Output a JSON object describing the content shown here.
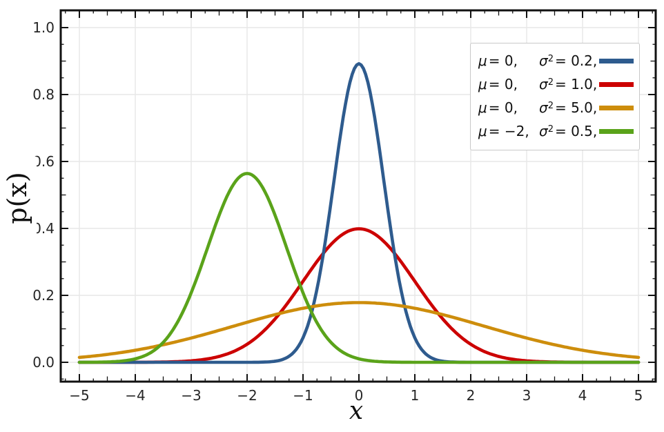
{
  "chart_data": {
    "type": "line",
    "title": "",
    "xlabel": "x",
    "ylabel": "p(x)",
    "xlim": [
      -5.33,
      5.31
    ],
    "ylim": [
      -0.058,
      1.051
    ],
    "x_major_ticks": [
      -5,
      -4,
      -3,
      -2,
      -1,
      0,
      1,
      2,
      3,
      4,
      5
    ],
    "x_tick_labels": [
      "−5",
      "−4",
      "−3",
      "−2",
      "−1",
      "0",
      "1",
      "2",
      "3",
      "4",
      "5"
    ],
    "y_major_ticks": [
      0,
      0.2,
      0.4,
      0.6,
      0.8,
      1.0
    ],
    "y_tick_labels": [
      "0.0",
      "0.2",
      "0.4",
      "0.6",
      "0.8",
      "1.0"
    ],
    "x_minor_step": 0.25,
    "y_minor_step": 0.05,
    "grid": true,
    "legend_position": "upper right",
    "curve_formula": "p(x) = 1/sqrt(2*pi*sigma2) * exp(-(x-mu)^2/(2*sigma2))",
    "x_sample_range": [
      -5,
      5
    ],
    "series": [
      {
        "label": "μ=0, σ²=0.2",
        "mu": 0,
        "sigma2": 0.2,
        "color": "#2e5b8e",
        "z": 2,
        "peak_x": 0,
        "peak_y": 0.892
      },
      {
        "label": "μ=0, σ²=1.0",
        "mu": 0,
        "sigma2": 1.0,
        "color": "#cc0000",
        "z": 1,
        "peak_x": 0,
        "peak_y": 0.399
      },
      {
        "label": "μ=0, σ²=5.0",
        "mu": 0,
        "sigma2": 5.0,
        "color": "#cd8d0c",
        "z": 3,
        "peak_x": 0,
        "peak_y": 0.178
      },
      {
        "label": "μ=−2, σ²=0.5",
        "mu": -2,
        "sigma2": 0.5,
        "color": "#5aa31a",
        "z": 4,
        "peak_x": -2,
        "peak_y": 0.564
      }
    ]
  },
  "legend": {
    "entries": [
      {
        "mu_sym": "μ",
        "mu_val": "= 0,",
        "sig_sym": "σ",
        "sig_exp": "2",
        "sig_val": "= 0.2,",
        "color": "#2e5b8e"
      },
      {
        "mu_sym": "μ",
        "mu_val": "= 0,",
        "sig_sym": "σ",
        "sig_exp": "2",
        "sig_val": "= 1.0,",
        "color": "#cc0000"
      },
      {
        "mu_sym": "μ",
        "mu_val": "= 0,",
        "sig_sym": "σ",
        "sig_exp": "2",
        "sig_val": "= 5.0,",
        "color": "#cd8d0c"
      },
      {
        "mu_sym": "μ",
        "mu_val": "= −2,",
        "sig_sym": "σ",
        "sig_exp": "2",
        "sig_val": "= 0.5,",
        "color": "#5aa31a"
      }
    ]
  },
  "colors": {
    "frame": "#111111",
    "ticks": "#111111",
    "grid": "#e7e7e7",
    "tick_label": "#262626",
    "background": "#ffffff",
    "legend_border": "#c8c8c8"
  }
}
